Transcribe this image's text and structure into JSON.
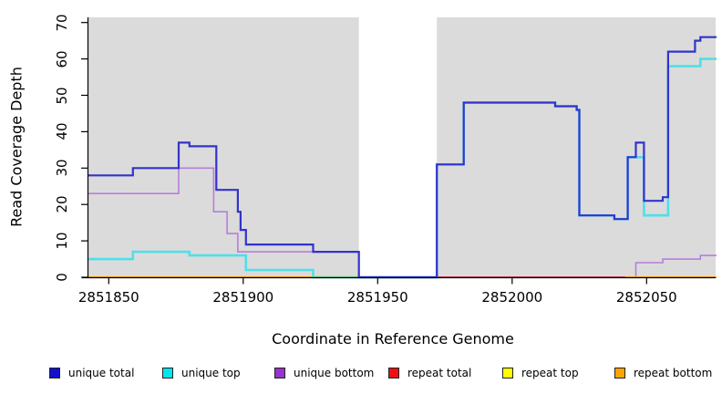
{
  "chart_data": {
    "type": "line",
    "subtype": "step-coverage-plot",
    "title": "",
    "xlabel": "Coordinate in Reference Genome",
    "ylabel": "Read Coverage Depth",
    "xlim": [
      2851842,
      2852076
    ],
    "ylim": [
      0,
      70
    ],
    "x_ticks": [
      2851850,
      2851900,
      2851950,
      2852000,
      2852050
    ],
    "y_ticks": [
      0,
      10,
      20,
      30,
      40,
      50,
      60,
      70
    ],
    "grid": false,
    "legend_position": "bottom",
    "plot_bg_color": "#DBDBDB",
    "coverage_gap_band": {
      "x1": 2851943,
      "x2": 2851972,
      "color": "#FFFFFF"
    },
    "series": [
      {
        "name": "unique total",
        "color": "#3333CC",
        "legend_color": "#1111CC",
        "points": [
          [
            2851842,
            28
          ],
          [
            2851859,
            30
          ],
          [
            2851876,
            37
          ],
          [
            2851880,
            36
          ],
          [
            2851890,
            24
          ],
          [
            2851898,
            18
          ],
          [
            2851899,
            13
          ],
          [
            2851901,
            9
          ],
          [
            2851926,
            7
          ],
          [
            2851943,
            0
          ],
          [
            2851972,
            31
          ],
          [
            2851982,
            48
          ],
          [
            2852016,
            47
          ],
          [
            2852024,
            46
          ],
          [
            2852025,
            17
          ],
          [
            2852038,
            16
          ],
          [
            2852043,
            33
          ],
          [
            2852046,
            37
          ],
          [
            2852049,
            21
          ],
          [
            2852056,
            22
          ],
          [
            2852058,
            62
          ],
          [
            2852068,
            65
          ],
          [
            2852070,
            66
          ]
        ]
      },
      {
        "name": "unique top",
        "color": "#4DE0EA",
        "legend_color": "#00E5EE",
        "points": [
          [
            2851842,
            5
          ],
          [
            2851859,
            7
          ],
          [
            2851880,
            6
          ],
          [
            2851901,
            2
          ],
          [
            2851926,
            0
          ],
          [
            2851972,
            31
          ],
          [
            2851982,
            48
          ],
          [
            2852016,
            47
          ],
          [
            2852024,
            46
          ],
          [
            2852025,
            17
          ],
          [
            2852038,
            16
          ],
          [
            2852043,
            33
          ],
          [
            2852049,
            17
          ],
          [
            2852058,
            58
          ],
          [
            2852070,
            60
          ]
        ]
      },
      {
        "name": "unique bottom",
        "color": "#B77FDB",
        "legend_color": "#9932CC",
        "points": [
          [
            2851842,
            23
          ],
          [
            2851876,
            30
          ],
          [
            2851889,
            18
          ],
          [
            2851894,
            12
          ],
          [
            2851898,
            7
          ],
          [
            2851943,
            0
          ],
          [
            2852046,
            4
          ],
          [
            2852056,
            5
          ],
          [
            2852070,
            6
          ]
        ]
      },
      {
        "name": "repeat total",
        "color": "#CC3E63",
        "legend_color": "#EE1111",
        "points": [
          [
            2851842,
            0
          ]
        ]
      },
      {
        "name": "repeat top",
        "color": "#FFFF00",
        "legend_color": "#FFFF00",
        "points": [
          [
            2851842,
            0
          ]
        ]
      },
      {
        "name": "repeat bottom",
        "color": "#FFA200",
        "legend_color": "#FFA500",
        "points": [
          [
            2851842,
            0
          ]
        ]
      }
    ],
    "baseline_blend_segments": [
      {
        "x1": 2851926,
        "x2": 2851943,
        "color": "#7CC67E"
      },
      {
        "x1": 2851972,
        "x2": 2852042,
        "color": "#CC3E63"
      },
      {
        "x1": 2852042,
        "x2": 2852076,
        "color": "#FFA200"
      }
    ]
  },
  "legend": {
    "items": [
      {
        "label": "unique total"
      },
      {
        "label": "unique top"
      },
      {
        "label": "unique bottom"
      },
      {
        "label": "repeat total"
      },
      {
        "label": "repeat top"
      },
      {
        "label": "repeat bottom"
      }
    ]
  }
}
